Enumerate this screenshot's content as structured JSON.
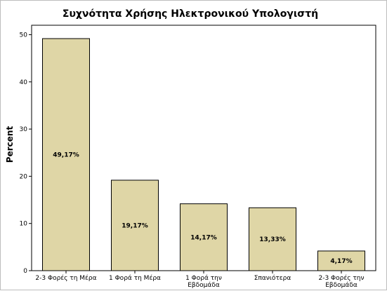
{
  "chart_data": {
    "type": "bar",
    "title": "Συχνότητα Χρήσης Ηλεκτρονικού Υπολογιστή",
    "xlabel": "",
    "ylabel": "Percent",
    "ylim": [
      0,
      52
    ],
    "yticks": [
      0,
      10,
      20,
      30,
      40,
      50
    ],
    "grid": false,
    "categories": [
      [
        "2-3 Φορές τη Μέρα"
      ],
      [
        "1 Φορά τη Μέρα"
      ],
      [
        "1 Φορά την",
        "Εβδομάδα"
      ],
      [
        "Σπανιότερα"
      ],
      [
        "2-3 Φορές την",
        "Εβδομάδα"
      ]
    ],
    "values": [
      49.17,
      19.17,
      14.17,
      13.33,
      4.17
    ],
    "data_labels": [
      "49,17%",
      "19,17%",
      "14,17%",
      "13,33%",
      "4,17%"
    ],
    "colors": {
      "bar_fill": "#dfd6a6",
      "bar_stroke": "#000000",
      "plot_background": "#ffffff",
      "frame": "#000000",
      "outer_border": "#bdbdbd"
    }
  }
}
